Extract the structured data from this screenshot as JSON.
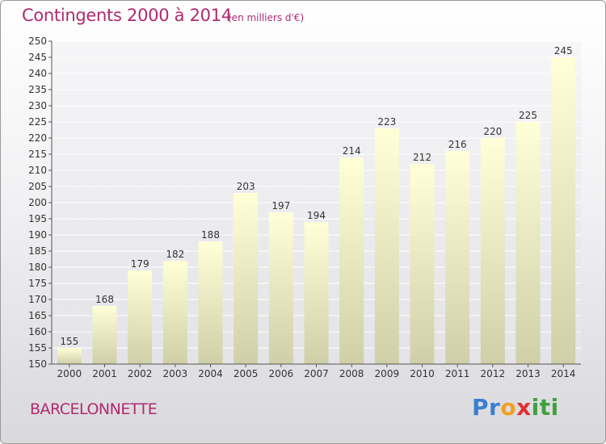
{
  "header": {
    "title": "Contingents 2000 à 2014",
    "subtitle": "(en milliers d'€)"
  },
  "footer": {
    "commune": "BARCELONNETTE",
    "logo_letters": [
      "P",
      "r",
      "o",
      "x",
      "i",
      "t",
      "i"
    ]
  },
  "colors": {
    "title": "#b02a70",
    "bar_top": "#ffffd8",
    "bar_bottom": "#cfcfa8",
    "grid": "#ffffff",
    "plot_bg": "#e8e8ec",
    "logo": [
      "#3a7fd0",
      "#3a7fd0",
      "#f0a020",
      "#e03030",
      "#40a040",
      "#40a040",
      "#40a040"
    ]
  },
  "chart_data": {
    "type": "bar",
    "title": "Contingents 2000 à 2014",
    "subtitle": "(en milliers d'€)",
    "categories": [
      "2000",
      "2001",
      "2002",
      "2003",
      "2004",
      "2005",
      "2006",
      "2007",
      "2008",
      "2009",
      "2010",
      "2011",
      "2012",
      "2013",
      "2014"
    ],
    "values": [
      155,
      168,
      179,
      182,
      188,
      203,
      197,
      194,
      214,
      223,
      212,
      216,
      220,
      225,
      245
    ],
    "ylim": [
      150,
      250
    ],
    "yticks": [
      150,
      155,
      160,
      165,
      170,
      175,
      180,
      185,
      190,
      195,
      200,
      205,
      210,
      215,
      220,
      225,
      230,
      235,
      240,
      245,
      250
    ],
    "grid": true,
    "data_labels": true
  }
}
